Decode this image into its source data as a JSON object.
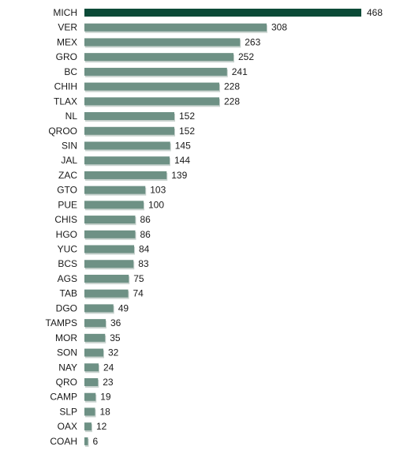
{
  "chart_data": {
    "type": "bar",
    "orientation": "horizontal",
    "title": "",
    "xlabel": "",
    "ylabel": "",
    "categories": [
      "MICH",
      "VER",
      "MEX",
      "GRO",
      "BC",
      "CHIH",
      "TLAX",
      "NL",
      "QROO",
      "SIN",
      "JAL",
      "ZAC",
      "GTO",
      "PUE",
      "CHIS",
      "HGO",
      "YUC",
      "BCS",
      "AGS",
      "TAB",
      "DGO",
      "TAMPS",
      "MOR",
      "SON",
      "NAY",
      "QRO",
      "CAMP",
      "SLP",
      "OAX",
      "COAH"
    ],
    "values": [
      468,
      308,
      263,
      252,
      241,
      228,
      228,
      152,
      152,
      145,
      144,
      139,
      103,
      100,
      86,
      86,
      84,
      83,
      75,
      74,
      49,
      36,
      35,
      32,
      24,
      23,
      19,
      18,
      12,
      6
    ],
    "xlim": [
      0,
      468
    ],
    "grid": false,
    "legend": "none",
    "colors": {
      "highlight": "#0b4a37",
      "bar": "#6e9185",
      "shadow": "#c9d3cf",
      "text": "#1a1a1a"
    }
  }
}
